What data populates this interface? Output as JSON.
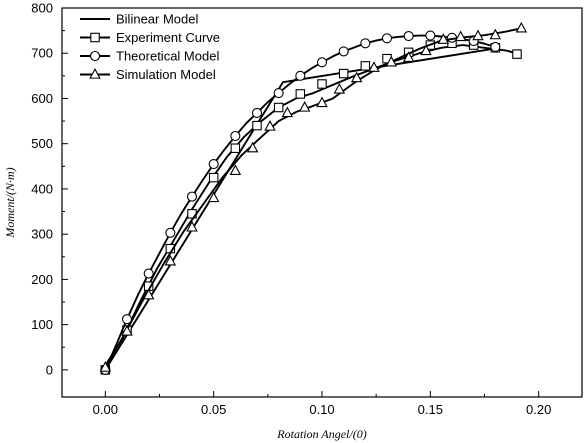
{
  "chart_data": {
    "type": "line",
    "title": "",
    "xlabel": "Rotation Angel/(0)",
    "ylabel": "Moment/(N·m)",
    "xlim": [
      -0.02,
      0.22
    ],
    "ylim": [
      -60,
      800
    ],
    "x_ticks": [
      0.0,
      0.05,
      0.1,
      0.15,
      0.2
    ],
    "x_tick_labels": [
      "0.00",
      "0.05",
      "0.10",
      "0.15",
      "0.20"
    ],
    "y_ticks": [
      0,
      100,
      200,
      300,
      400,
      500,
      600,
      700,
      800
    ],
    "y_tick_labels": [
      "0",
      "100",
      "200",
      "300",
      "400",
      "500",
      "600",
      "700",
      "800"
    ],
    "grid": false,
    "legend_position": "top-left",
    "series": [
      {
        "name": "Bilinear Model",
        "marker": "none",
        "color": "#000000",
        "points": [
          [
            0.0,
            0
          ],
          [
            0.082,
            636
          ],
          [
            0.182,
            712
          ]
        ],
        "markers": []
      },
      {
        "name": "Experiment Curve",
        "marker": "square",
        "color": "#000000",
        "points": [
          [
            0.0,
            10
          ],
          [
            0.008,
            70
          ],
          [
            0.016,
            150
          ],
          [
            0.024,
            225
          ],
          [
            0.032,
            290
          ],
          [
            0.04,
            355
          ],
          [
            0.048,
            415
          ],
          [
            0.056,
            470
          ],
          [
            0.064,
            515
          ],
          [
            0.072,
            550
          ],
          [
            0.08,
            580
          ],
          [
            0.088,
            600
          ],
          [
            0.096,
            612
          ],
          [
            0.105,
            630
          ],
          [
            0.115,
            650
          ],
          [
            0.125,
            668
          ],
          [
            0.135,
            685
          ],
          [
            0.145,
            700
          ],
          [
            0.155,
            712
          ],
          [
            0.165,
            718
          ],
          [
            0.175,
            712
          ],
          [
            0.185,
            706
          ],
          [
            0.188,
            702
          ]
        ],
        "markers": [
          [
            0.0,
            0
          ],
          [
            0.01,
            88
          ],
          [
            0.02,
            185
          ],
          [
            0.03,
            268
          ],
          [
            0.04,
            345
          ],
          [
            0.05,
            425
          ],
          [
            0.06,
            490
          ],
          [
            0.07,
            540
          ],
          [
            0.08,
            580
          ],
          [
            0.09,
            610
          ],
          [
            0.1,
            632
          ],
          [
            0.11,
            655
          ],
          [
            0.12,
            672
          ],
          [
            0.13,
            688
          ],
          [
            0.14,
            702
          ],
          [
            0.15,
            718
          ],
          [
            0.16,
            722
          ],
          [
            0.17,
            718
          ],
          [
            0.18,
            712
          ],
          [
            0.19,
            698
          ]
        ]
      },
      {
        "name": "Theoretical Model",
        "marker": "circle",
        "color": "#000000",
        "points": [
          [
            0.0,
            0
          ],
          [
            0.005,
            55
          ],
          [
            0.01,
            112
          ],
          [
            0.015,
            165
          ],
          [
            0.02,
            213
          ],
          [
            0.025,
            258
          ],
          [
            0.03,
            303
          ],
          [
            0.035,
            345
          ],
          [
            0.04,
            383
          ],
          [
            0.045,
            420
          ],
          [
            0.05,
            455
          ],
          [
            0.055,
            487
          ],
          [
            0.06,
            517
          ],
          [
            0.065,
            545
          ],
          [
            0.07,
            568
          ],
          [
            0.075,
            592
          ],
          [
            0.08,
            612
          ],
          [
            0.085,
            632
          ],
          [
            0.09,
            650
          ],
          [
            0.095,
            666
          ],
          [
            0.1,
            680
          ],
          [
            0.105,
            693
          ],
          [
            0.11,
            704
          ],
          [
            0.115,
            713
          ],
          [
            0.12,
            722
          ],
          [
            0.125,
            728
          ],
          [
            0.13,
            733
          ],
          [
            0.135,
            736
          ],
          [
            0.14,
            738
          ],
          [
            0.145,
            739
          ],
          [
            0.15,
            739
          ],
          [
            0.155,
            737
          ],
          [
            0.16,
            734
          ],
          [
            0.165,
            731
          ],
          [
            0.17,
            727
          ],
          [
            0.175,
            721
          ],
          [
            0.18,
            714
          ]
        ],
        "markers": [
          [
            0.0,
            0
          ],
          [
            0.01,
            112
          ],
          [
            0.02,
            213
          ],
          [
            0.03,
            303
          ],
          [
            0.04,
            383
          ],
          [
            0.05,
            455
          ],
          [
            0.06,
            517
          ],
          [
            0.07,
            568
          ],
          [
            0.08,
            612
          ],
          [
            0.09,
            650
          ],
          [
            0.1,
            680
          ],
          [
            0.11,
            704
          ],
          [
            0.12,
            722
          ],
          [
            0.13,
            733
          ],
          [
            0.14,
            738
          ],
          [
            0.15,
            739
          ],
          [
            0.16,
            734
          ],
          [
            0.17,
            727
          ],
          [
            0.18,
            714
          ]
        ]
      },
      {
        "name": "Simulation Model",
        "marker": "triangle",
        "color": "#000000",
        "points": [
          [
            0.0,
            5
          ],
          [
            0.009,
            80
          ],
          [
            0.018,
            160
          ],
          [
            0.027,
            235
          ],
          [
            0.036,
            305
          ],
          [
            0.045,
            365
          ],
          [
            0.054,
            425
          ],
          [
            0.063,
            475
          ],
          [
            0.072,
            515
          ],
          [
            0.08,
            550
          ],
          [
            0.088,
            570
          ],
          [
            0.095,
            582
          ],
          [
            0.105,
            600
          ],
          [
            0.115,
            635
          ],
          [
            0.125,
            665
          ],
          [
            0.135,
            688
          ],
          [
            0.145,
            710
          ],
          [
            0.155,
            728
          ],
          [
            0.165,
            735
          ],
          [
            0.175,
            740
          ],
          [
            0.185,
            748
          ],
          [
            0.192,
            755
          ]
        ],
        "markers": [
          [
            0.0,
            5
          ],
          [
            0.01,
            85
          ],
          [
            0.02,
            165
          ],
          [
            0.03,
            240
          ],
          [
            0.04,
            315
          ],
          [
            0.05,
            380
          ],
          [
            0.06,
            440
          ],
          [
            0.068,
            490
          ],
          [
            0.076,
            538
          ],
          [
            0.084,
            568
          ],
          [
            0.092,
            580
          ],
          [
            0.1,
            590
          ],
          [
            0.108,
            620
          ],
          [
            0.116,
            645
          ],
          [
            0.124,
            668
          ],
          [
            0.132,
            680
          ],
          [
            0.14,
            690
          ],
          [
            0.148,
            705
          ],
          [
            0.156,
            730
          ],
          [
            0.164,
            736
          ],
          [
            0.172,
            738
          ],
          [
            0.18,
            740
          ],
          [
            0.192,
            755
          ]
        ]
      }
    ]
  }
}
